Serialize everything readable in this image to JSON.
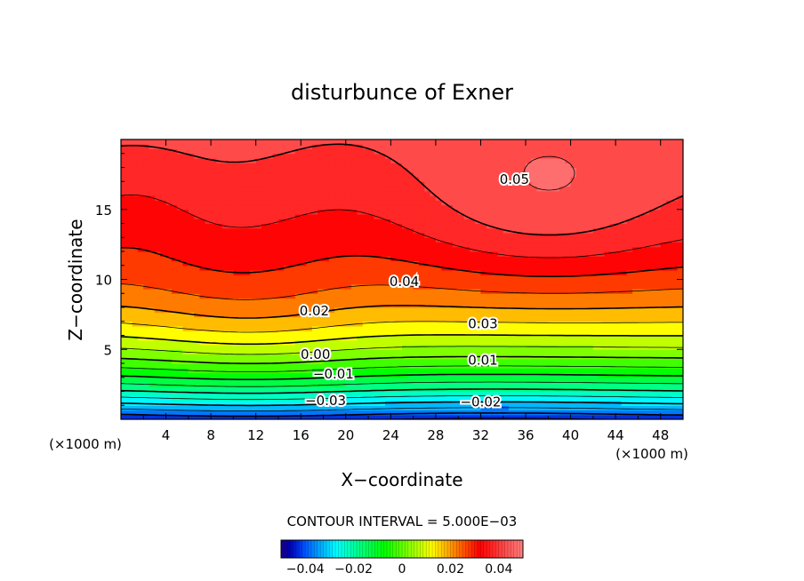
{
  "chart_data": {
    "type": "contour",
    "title": "disturbunce of Exner",
    "xlabel": "X−coordinate",
    "ylabel": "Z−coordinate",
    "x_unit_left": "(×1000 m)",
    "x_unit_right": "(×1000 m)",
    "xlim": [
      0,
      50
    ],
    "ylim": [
      0,
      20
    ],
    "x_ticks": [
      4,
      8,
      12,
      16,
      20,
      24,
      28,
      32,
      36,
      40,
      44,
      48
    ],
    "y_ticks": [
      5,
      10,
      15
    ],
    "contour_interval_text": "CONTOUR INTERVAL = 5.000E−03",
    "contour_interval": 0.005,
    "value_range": [
      -0.045,
      0.055
    ],
    "contour_labels": [
      {
        "text": "0.05",
        "x": 35,
        "z": 17.1
      },
      {
        "text": "0.04",
        "x": 25.2,
        "z": 9.8
      },
      {
        "text": "0.03",
        "x": 32.2,
        "z": 6.8
      },
      {
        "text": "0.02",
        "x": 17.2,
        "z": 7.7
      },
      {
        "text": "0.01",
        "x": 32.2,
        "z": 4.2
      },
      {
        "text": "0.00",
        "x": 17.3,
        "z": 4.6
      },
      {
        "text": "−0.01",
        "x": 18.9,
        "z": 3.2
      },
      {
        "text": "−0.02",
        "x": 32.0,
        "z": 1.2
      },
      {
        "text": "−0.03",
        "x": 18.2,
        "z": 1.3
      }
    ],
    "colorbar": {
      "range": [
        -0.05,
        0.05
      ],
      "tick_values": [
        -0.04,
        -0.02,
        0,
        0.02,
        0.04
      ],
      "tick_labels": [
        "−0.04",
        "−0.02",
        "0",
        "0.02",
        "0.04"
      ]
    },
    "colors": {
      "above_max": "#ffffff",
      "contour_line": "#000000"
    }
  }
}
